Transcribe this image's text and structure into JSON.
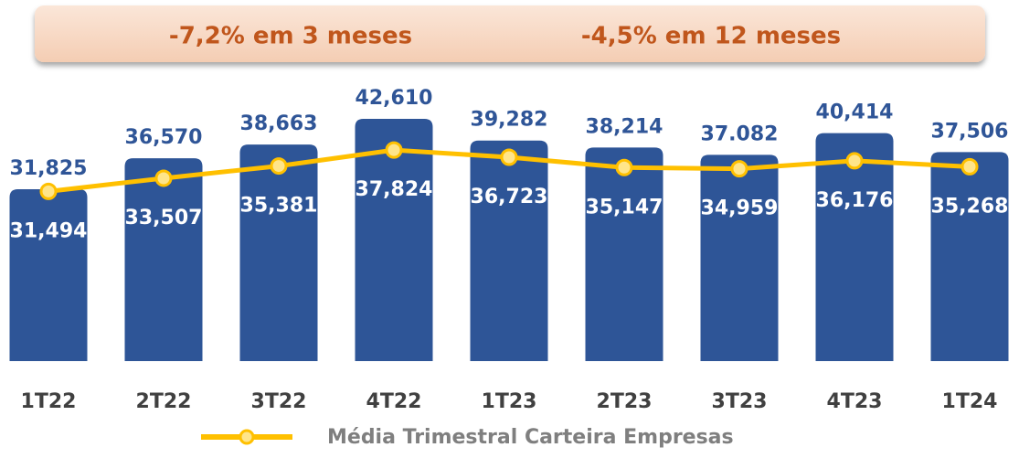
{
  "chart_data": {
    "type": "bar_line",
    "annotations": [
      "-7,2% em 3 meses",
      "-4,5% em 12 meses"
    ],
    "categories": [
      "1T22",
      "2T22",
      "3T22",
      "4T22",
      "1T23",
      "2T23",
      "3T23",
      "4T23",
      "1T24"
    ],
    "series": [
      {
        "type": "bar",
        "color": "#2e5597",
        "values": [
          31.825,
          36.57,
          38.663,
          42.61,
          39.282,
          38.214,
          37.082,
          40.414,
          37.506
        ],
        "value_labels": [
          "31,825",
          "36,570",
          "38,663",
          "42,610",
          "39,282",
          "38,214",
          "37.082",
          "40,414",
          "37,506"
        ]
      },
      {
        "type": "line",
        "name": "Média Trimestral Carteira Empresas",
        "color": "#ffc000",
        "values": [
          31.494,
          33.507,
          35.381,
          37.824,
          36.723,
          35.147,
          34.959,
          36.176,
          35.268
        ],
        "value_labels": [
          "31,494",
          "33,507",
          "35,381",
          "37,824",
          "36,723",
          "35,147",
          "34,959",
          "36,176",
          "35,268"
        ]
      }
    ],
    "ylim": [
      5.5,
      47
    ]
  }
}
